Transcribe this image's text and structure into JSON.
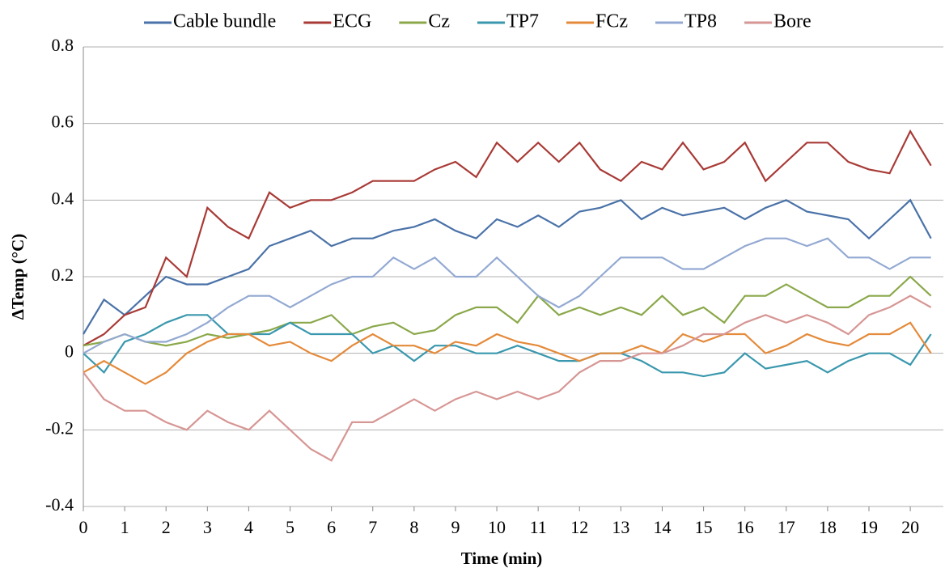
{
  "chart_data": {
    "type": "line",
    "x_label": "Time (min)",
    "y_label": "ΔTemp (°C)",
    "x": [
      0,
      0.5,
      1,
      1.5,
      2,
      2.5,
      3,
      3.5,
      4,
      4.5,
      5,
      5.5,
      6,
      6.5,
      7,
      7.5,
      8,
      8.5,
      9,
      9.5,
      10,
      10.5,
      11,
      11.5,
      12,
      12.5,
      13,
      13.5,
      14,
      14.5,
      15,
      15.5,
      16,
      16.5,
      17,
      17.5,
      18,
      18.5,
      19,
      19.5,
      20,
      20.5
    ],
    "series": [
      {
        "name": "Cable bundle",
        "color": "#4a72a8",
        "values": [
          0.05,
          0.14,
          0.1,
          0.15,
          0.2,
          0.18,
          0.18,
          0.2,
          0.22,
          0.28,
          0.3,
          0.32,
          0.28,
          0.3,
          0.3,
          0.32,
          0.33,
          0.35,
          0.32,
          0.3,
          0.35,
          0.33,
          0.36,
          0.33,
          0.37,
          0.38,
          0.4,
          0.35,
          0.38,
          0.36,
          0.37,
          0.38,
          0.35,
          0.38,
          0.4,
          0.37,
          0.36,
          0.35,
          0.3,
          0.35,
          0.4,
          0.3
        ]
      },
      {
        "name": "ECG",
        "color": "#a83a36",
        "values": [
          0.02,
          0.05,
          0.1,
          0.12,
          0.25,
          0.2,
          0.38,
          0.33,
          0.3,
          0.42,
          0.38,
          0.4,
          0.4,
          0.42,
          0.45,
          0.45,
          0.45,
          0.48,
          0.5,
          0.46,
          0.55,
          0.5,
          0.55,
          0.5,
          0.55,
          0.48,
          0.45,
          0.5,
          0.48,
          0.55,
          0.48,
          0.5,
          0.55,
          0.45,
          0.5,
          0.55,
          0.55,
          0.5,
          0.48,
          0.47,
          0.58,
          0.49
        ]
      },
      {
        "name": "Cz",
        "color": "#8aa84a",
        "values": [
          0.02,
          0.03,
          0.05,
          0.03,
          0.02,
          0.03,
          0.05,
          0.04,
          0.05,
          0.06,
          0.08,
          0.08,
          0.1,
          0.05,
          0.07,
          0.08,
          0.05,
          0.06,
          0.1,
          0.12,
          0.12,
          0.08,
          0.15,
          0.1,
          0.12,
          0.1,
          0.12,
          0.1,
          0.15,
          0.1,
          0.12,
          0.08,
          0.15,
          0.15,
          0.18,
          0.15,
          0.12,
          0.12,
          0.15,
          0.15,
          0.2,
          0.15
        ]
      },
      {
        "name": "TP7",
        "color": "#3a98ae",
        "values": [
          0,
          -0.05,
          0.03,
          0.05,
          0.08,
          0.1,
          0.1,
          0.05,
          0.05,
          0.05,
          0.08,
          0.05,
          0.05,
          0.05,
          0,
          0.02,
          -0.02,
          0.02,
          0.02,
          0,
          0,
          0.02,
          0,
          -0.02,
          -0.02,
          0,
          0,
          -0.02,
          -0.05,
          -0.05,
          -0.06,
          -0.05,
          0,
          -0.04,
          -0.03,
          -0.02,
          -0.05,
          -0.02,
          0,
          0,
          -0.03,
          0.05
        ]
      },
      {
        "name": "FCz",
        "color": "#e48a3a",
        "values": [
          -0.05,
          -0.02,
          -0.05,
          -0.08,
          -0.05,
          0,
          0.03,
          0.05,
          0.05,
          0.02,
          0.03,
          0,
          -0.02,
          0.02,
          0.05,
          0.02,
          0.02,
          0,
          0.03,
          0.02,
          0.05,
          0.03,
          0.02,
          0,
          -0.02,
          0,
          0,
          0.02,
          0,
          0.05,
          0.03,
          0.05,
          0.05,
          0,
          0.02,
          0.05,
          0.03,
          0.02,
          0.05,
          0.05,
          0.08,
          0
        ]
      },
      {
        "name": "TP8",
        "color": "#93a9d2",
        "values": [
          0,
          0.03,
          0.05,
          0.03,
          0.03,
          0.05,
          0.08,
          0.12,
          0.15,
          0.15,
          0.12,
          0.15,
          0.18,
          0.2,
          0.2,
          0.25,
          0.22,
          0.25,
          0.2,
          0.2,
          0.25,
          0.2,
          0.15,
          0.12,
          0.15,
          0.2,
          0.25,
          0.25,
          0.25,
          0.22,
          0.22,
          0.25,
          0.28,
          0.3,
          0.3,
          0.28,
          0.3,
          0.25,
          0.25,
          0.22,
          0.25,
          0.25
        ]
      },
      {
        "name": "Bore",
        "color": "#d69694",
        "values": [
          -0.05,
          -0.12,
          -0.15,
          -0.15,
          -0.18,
          -0.2,
          -0.15,
          -0.18,
          -0.2,
          -0.15,
          -0.2,
          -0.25,
          -0.28,
          -0.18,
          -0.18,
          -0.15,
          -0.12,
          -0.15,
          -0.12,
          -0.1,
          -0.12,
          -0.1,
          -0.12,
          -0.1,
          -0.05,
          -0.02,
          -0.02,
          0,
          0,
          0.02,
          0.05,
          0.05,
          0.08,
          0.1,
          0.08,
          0.1,
          0.08,
          0.05,
          0.1,
          0.12,
          0.15,
          0.12
        ]
      }
    ],
    "xlim": [
      0,
      20.8
    ],
    "xticks": [
      0,
      1,
      2,
      3,
      4,
      5,
      6,
      7,
      8,
      9,
      10,
      11,
      12,
      13,
      14,
      15,
      16,
      17,
      18,
      19,
      20
    ],
    "ylim": [
      -0.4,
      0.8
    ],
    "yticks": [
      -0.4,
      -0.2,
      0,
      0.2,
      0.4,
      0.6,
      0.8
    ],
    "grid": true,
    "legend": "top"
  }
}
